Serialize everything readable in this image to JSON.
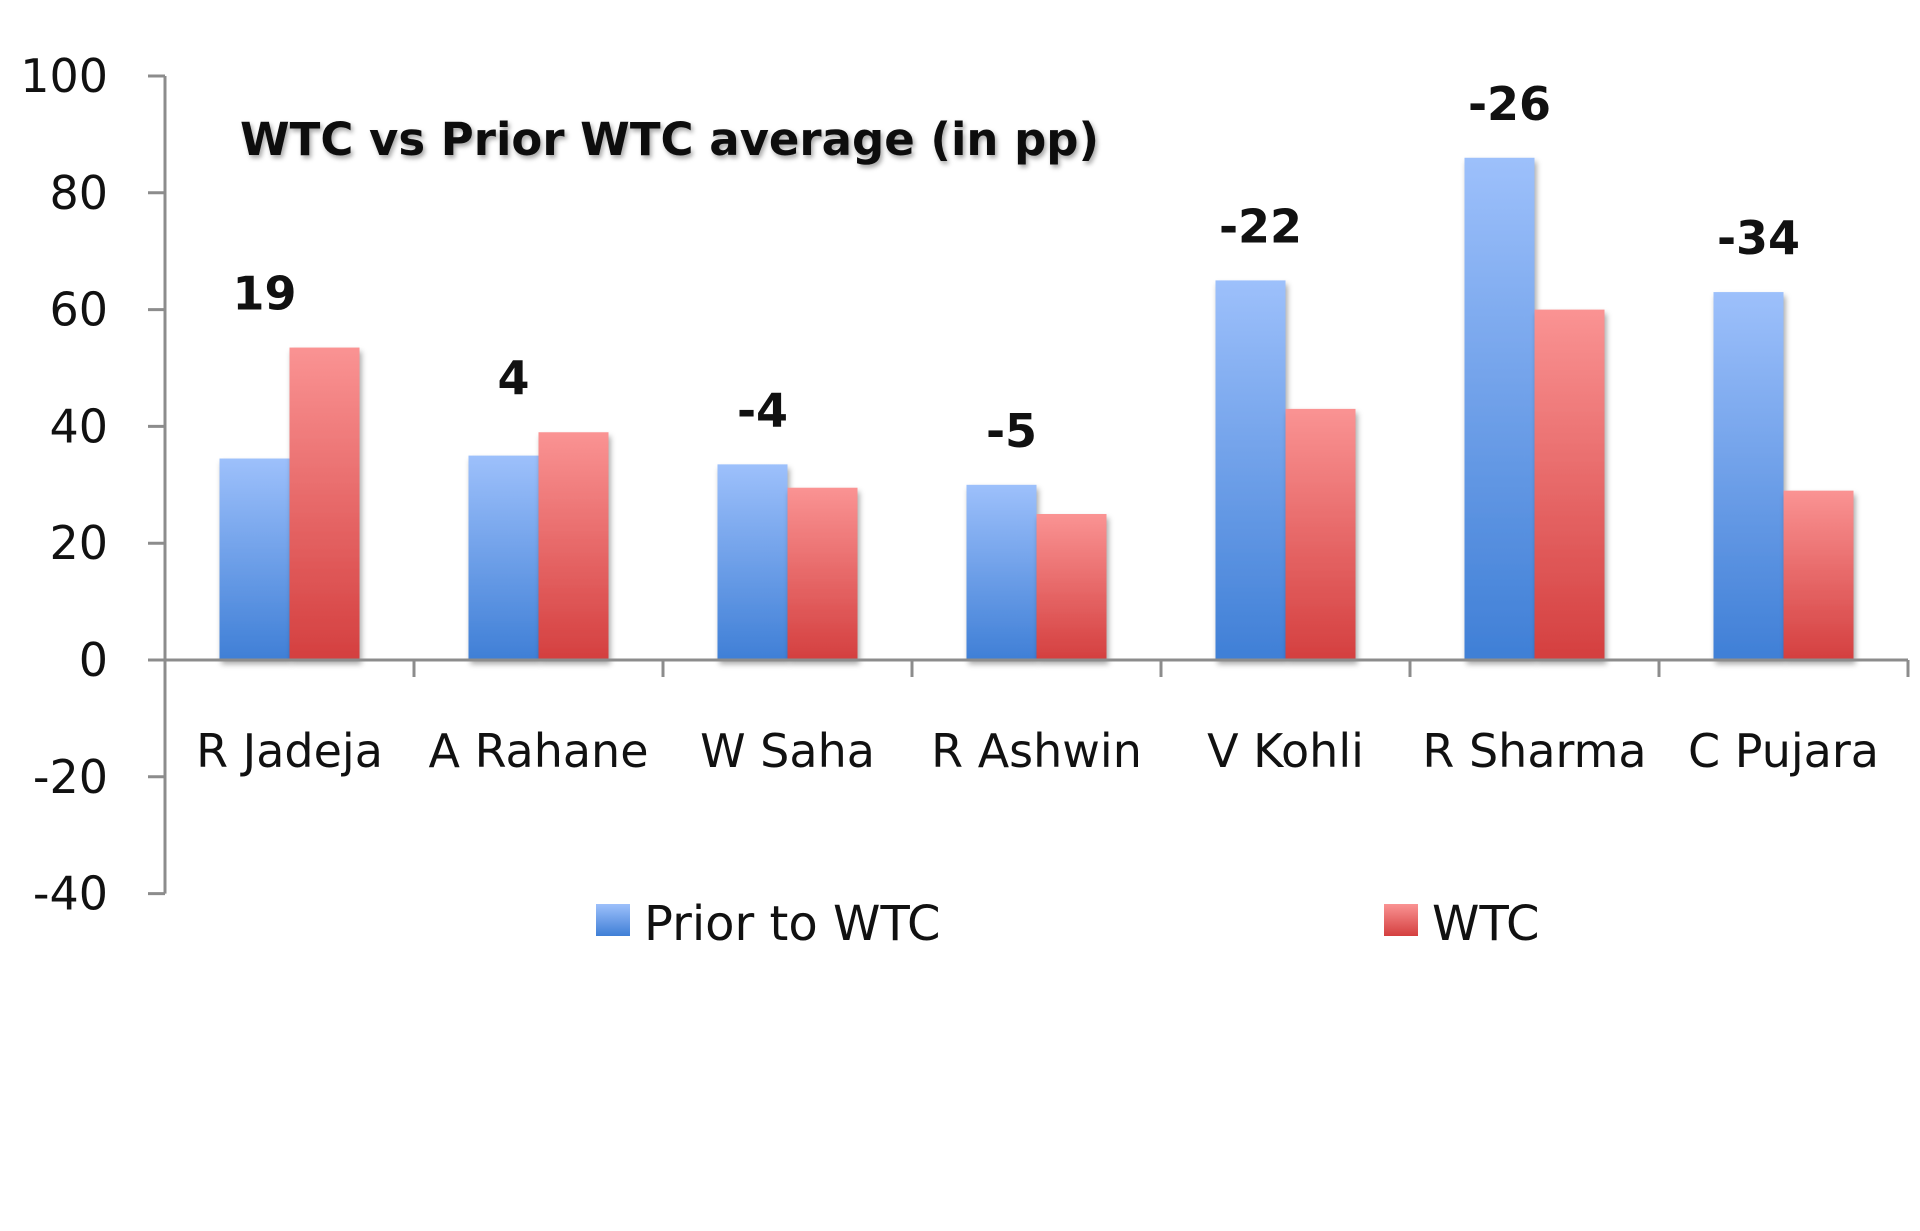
{
  "chart_data": {
    "type": "bar",
    "title": "WTC vs Prior WTC average (in pp)",
    "xlabel": "",
    "ylabel": "",
    "ylim": [
      -40,
      100
    ],
    "yticks": [
      "100",
      "80",
      "60",
      "40",
      "20",
      "0",
      "-20",
      "-40"
    ],
    "ytick_values": [
      100,
      80,
      60,
      40,
      20,
      0,
      -20,
      -40
    ],
    "grid": false,
    "legend_position": "bottom",
    "categories": [
      "R Jadeja",
      "A Rahane",
      "W Saha",
      "R Ashwin",
      "V Kohli",
      "R Sharma",
      "C Pujara"
    ],
    "series": [
      {
        "name": "Prior to WTC",
        "color": "#4a86d8",
        "values": [
          34.5,
          35,
          33.5,
          30,
          65,
          86,
          63
        ]
      },
      {
        "name": "WTC",
        "color": "#d9484a",
        "values": [
          53.5,
          39,
          29.5,
          25,
          43,
          60,
          29
        ]
      }
    ],
    "annotations": [
      "19",
      "4",
      "-4",
      "-5",
      "-22",
      "-26",
      "-34"
    ]
  }
}
